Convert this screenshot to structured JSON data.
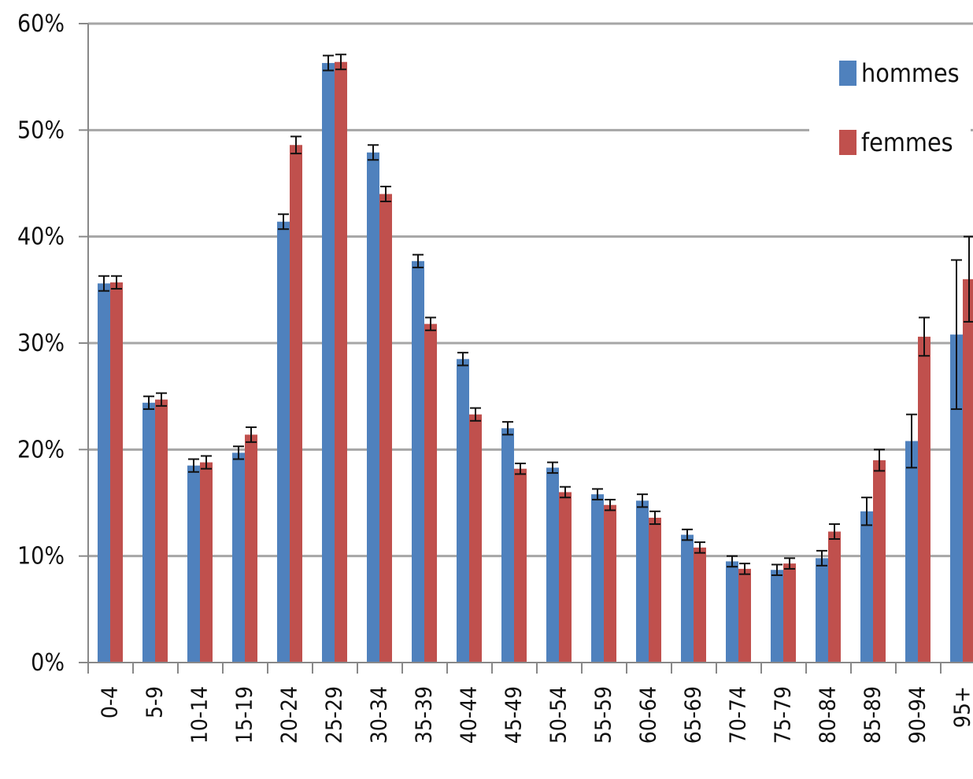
{
  "chart_data": {
    "type": "bar",
    "title": "",
    "xlabel": "",
    "ylabel": "",
    "ylim": [
      0,
      60
    ],
    "y_ticks": [
      "0%",
      "10%",
      "20%",
      "30%",
      "40%",
      "50%",
      "60%"
    ],
    "y_tick_values": [
      0,
      10,
      20,
      30,
      40,
      50,
      60
    ],
    "grid": true,
    "legend_position": "top-right",
    "categories": [
      "0-4",
      "5-9",
      "10-14",
      "15-19",
      "20-24",
      "25-29",
      "30-34",
      "35-39",
      "40-44",
      "45-49",
      "50-54",
      "55-59",
      "60-64",
      "65-69",
      "70-74",
      "75-79",
      "80-84",
      "85-89",
      "90-94",
      "95+"
    ],
    "series": [
      {
        "name": "hommes",
        "color": "#4f81bd",
        "values": [
          35.6,
          24.4,
          18.5,
          19.7,
          41.4,
          56.3,
          47.9,
          37.7,
          28.5,
          22.0,
          18.3,
          15.8,
          15.2,
          12.0,
          9.5,
          8.7,
          9.8,
          14.2,
          20.8,
          30.8
        ],
        "errors": [
          0.7,
          0.6,
          0.6,
          0.6,
          0.7,
          0.7,
          0.7,
          0.6,
          0.6,
          0.6,
          0.5,
          0.5,
          0.6,
          0.5,
          0.5,
          0.5,
          0.7,
          1.3,
          2.5,
          7.0
        ]
      },
      {
        "name": "femmes",
        "color": "#c0504d",
        "values": [
          35.7,
          24.7,
          18.8,
          21.4,
          48.6,
          56.4,
          44.0,
          31.8,
          23.3,
          18.2,
          16.0,
          14.8,
          13.6,
          10.8,
          8.8,
          9.3,
          12.3,
          19.0,
          30.6,
          36.0
        ],
        "errors": [
          0.6,
          0.6,
          0.6,
          0.7,
          0.8,
          0.7,
          0.7,
          0.6,
          0.6,
          0.5,
          0.5,
          0.5,
          0.6,
          0.5,
          0.5,
          0.5,
          0.7,
          1.0,
          1.8,
          4.0
        ]
      }
    ]
  }
}
